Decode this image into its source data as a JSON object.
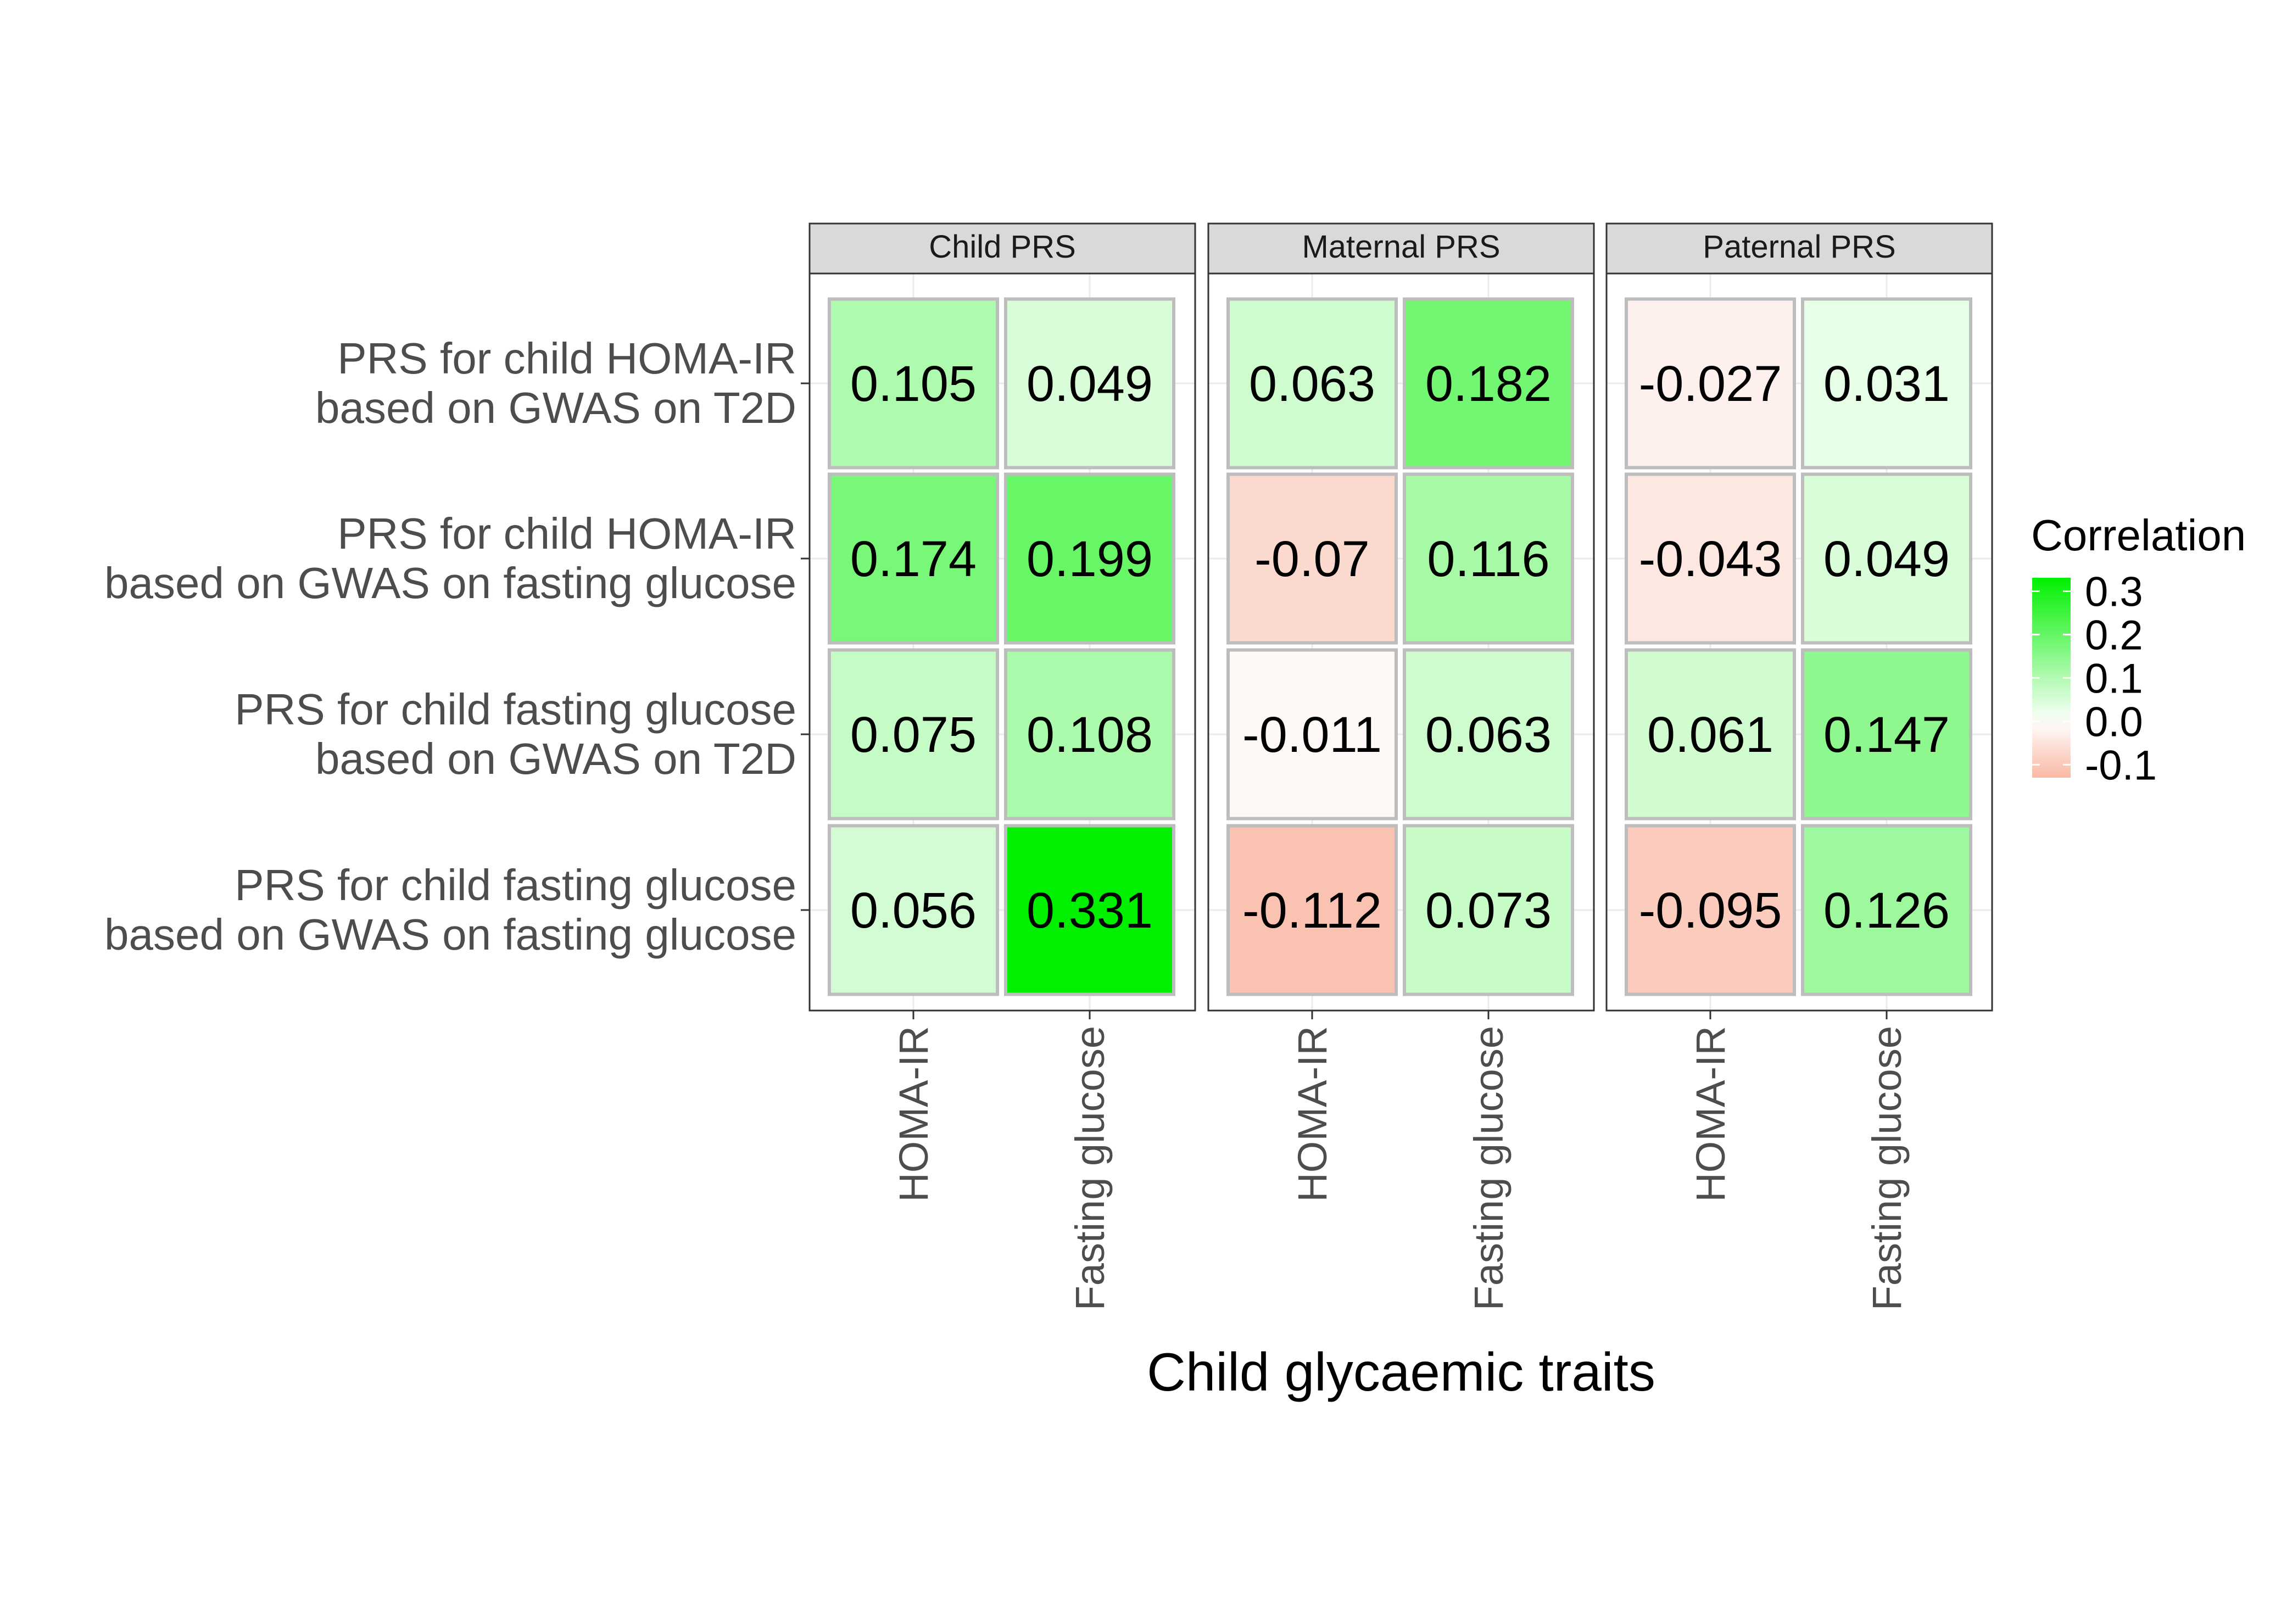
{
  "chart_data": {
    "type": "heatmap",
    "title": "",
    "xlabel": "Child glycaemic traits",
    "ylabel": "",
    "facets": [
      "Child PRS",
      "Maternal PRS",
      "Paternal PRS"
    ],
    "columns": [
      "HOMA-IR",
      "Fasting glucose"
    ],
    "rows": [
      {
        "line1": "PRS for child HOMA-IR",
        "line2": "based on GWAS on T2D"
      },
      {
        "line1": "PRS for child HOMA-IR",
        "line2": "based on GWAS on fasting glucose"
      },
      {
        "line1": "PRS for child fasting glucose",
        "line2": "based on GWAS on T2D"
      },
      {
        "line1": "PRS for child fasting glucose",
        "line2": "based on GWAS on fasting glucose"
      }
    ],
    "values": [
      [
        [
          0.105,
          0.049
        ],
        [
          0.174,
          0.199
        ],
        [
          0.075,
          0.108
        ],
        [
          0.056,
          0.331
        ]
      ],
      [
        [
          0.063,
          0.182
        ],
        [
          -0.07,
          0.116
        ],
        [
          -0.011,
          0.063
        ],
        [
          -0.112,
          0.073
        ]
      ],
      [
        [
          -0.027,
          0.031
        ],
        [
          -0.043,
          0.049
        ],
        [
          0.061,
          0.147
        ],
        [
          -0.095,
          0.126
        ]
      ]
    ],
    "labels": [
      [
        [
          "0.105",
          "0.049"
        ],
        [
          "0.174",
          "0.199"
        ],
        [
          "0.075",
          "0.108"
        ],
        [
          "0.056",
          "0.331"
        ]
      ],
      [
        [
          "0.063",
          "0.182"
        ],
        [
          "-0.07",
          "0.116"
        ],
        [
          "-0.011",
          "0.063"
        ],
        [
          "-0.112",
          "0.073"
        ]
      ],
      [
        [
          "-0.027",
          "0.031"
        ],
        [
          "-0.043",
          "0.049"
        ],
        [
          "0.061",
          "0.147"
        ],
        [
          "-0.095",
          "0.126"
        ]
      ]
    ],
    "legend": {
      "title": "Correlation",
      "ticks": [
        "0.3",
        "0.2",
        "0.1",
        "0.0",
        "-0.1"
      ],
      "range": [
        -0.13,
        0.331
      ],
      "colors": {
        "low": "#f9b8a4",
        "mid": "#ffffff",
        "high": "#00f000"
      },
      "placement": "right"
    },
    "grid": true,
    "colors": {
      "strip_fill": "#d9d9d9",
      "tile_border": "#bdbdbd",
      "grid": "#ebebeb",
      "axis_text": "#4d4d4d",
      "text": "#000000"
    }
  }
}
